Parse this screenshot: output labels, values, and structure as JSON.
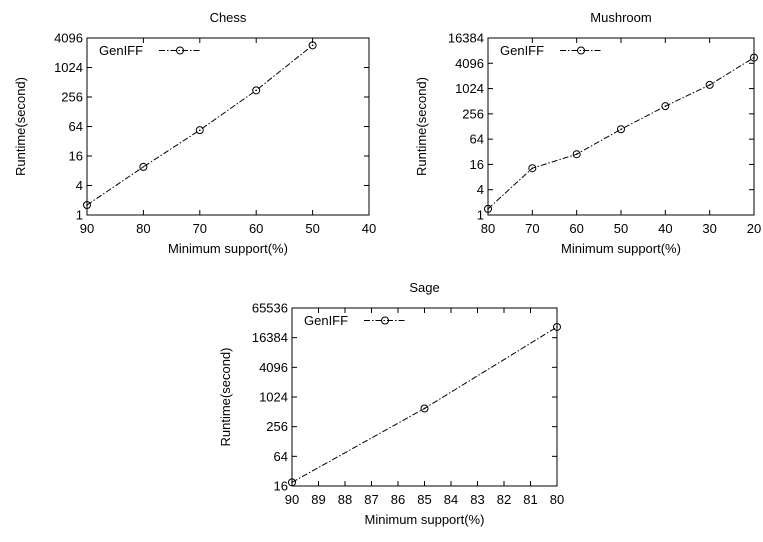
{
  "chart_data": [
    {
      "type": "line",
      "title": "Chess",
      "xlabel": "Minimum support(%)",
      "ylabel": "Runtime(second)",
      "x_ticks": [
        90,
        80,
        70,
        60,
        50,
        40
      ],
      "xlim": [
        90,
        40
      ],
      "x_direction": "decreasing",
      "y_scale": "log2",
      "y_ticks": [
        1,
        4,
        16,
        64,
        256,
        1024,
        4096
      ],
      "ylim": [
        1,
        4096
      ],
      "legend_position": "top-left",
      "grid": false,
      "series": [
        {
          "name": "GenIFF",
          "x": [
            90,
            80,
            70,
            60,
            50
          ],
          "y": [
            1.6,
            9.6,
            54,
            350,
            2900
          ]
        }
      ]
    },
    {
      "type": "line",
      "title": "Mushroom",
      "xlabel": "Minimum support(%)",
      "ylabel": "Runtime(second)",
      "x_ticks": [
        80,
        70,
        60,
        50,
        40,
        30,
        20
      ],
      "xlim": [
        80,
        20
      ],
      "x_direction": "decreasing",
      "y_scale": "log2",
      "y_ticks": [
        1,
        4,
        16,
        64,
        256,
        1024,
        4096,
        16384
      ],
      "ylim": [
        1,
        16384
      ],
      "legend_position": "top-left",
      "grid": false,
      "series": [
        {
          "name": "GenIFF",
          "x": [
            80,
            70,
            60,
            50,
            40,
            30,
            20
          ],
          "y": [
            1.4,
            13,
            28,
            110,
            390,
            1250,
            5600
          ]
        }
      ]
    },
    {
      "type": "line",
      "title": "Sage",
      "xlabel": "Minimum support(%)",
      "ylabel": "Runtime(second)",
      "x_ticks": [
        90,
        89,
        88,
        87,
        86,
        85,
        84,
        83,
        82,
        81,
        80
      ],
      "xlim": [
        90,
        80
      ],
      "x_direction": "decreasing",
      "y_scale": "log2",
      "y_ticks": [
        16,
        64,
        256,
        1024,
        4096,
        16384,
        65536
      ],
      "ylim": [
        16,
        65536
      ],
      "legend_position": "top-left",
      "grid": false,
      "series": [
        {
          "name": "GenIFF",
          "x": [
            90,
            85,
            80
          ],
          "y": [
            19,
            600,
            27000
          ]
        }
      ]
    }
  ]
}
